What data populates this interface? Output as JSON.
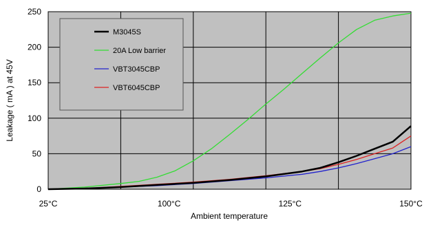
{
  "chart_data": {
    "type": "line",
    "xlabel": "Ambient temperature",
    "ylabel": "Leakage ( mA ) at 45V",
    "x_ticks": [
      "25°C",
      "100°C",
      "125°C",
      "150°C"
    ],
    "y_ticks": [
      "0",
      "50",
      "100",
      "150",
      "200",
      "250"
    ],
    "ylim": [
      0,
      250
    ],
    "grid": true,
    "legend_position": "top-left",
    "x_plot_positions": [
      0,
      0.2,
      0.4,
      0.6,
      0.8,
      1.0
    ],
    "series": [
      {
        "name": "M3045S",
        "color": "#000000",
        "values": [
          [
            0.0,
            0
          ],
          [
            0.1,
            1
          ],
          [
            0.2,
            3
          ],
          [
            0.3,
            6
          ],
          [
            0.4,
            9
          ],
          [
            0.5,
            13
          ],
          [
            0.6,
            18
          ],
          [
            0.7,
            25
          ],
          [
            0.75,
            30
          ],
          [
            0.8,
            38
          ],
          [
            0.85,
            47
          ],
          [
            0.9,
            57
          ],
          [
            0.95,
            67
          ],
          [
            1.0,
            89
          ]
        ]
      },
      {
        "name": "20A Low barrier",
        "color": "#33dd33",
        "values": [
          [
            0.0,
            0
          ],
          [
            0.1,
            3
          ],
          [
            0.2,
            8
          ],
          [
            0.25,
            11
          ],
          [
            0.3,
            17
          ],
          [
            0.35,
            26
          ],
          [
            0.4,
            40
          ],
          [
            0.45,
            57
          ],
          [
            0.5,
            77
          ],
          [
            0.55,
            98
          ],
          [
            0.6,
            120
          ],
          [
            0.65,
            141
          ],
          [
            0.7,
            163
          ],
          [
            0.75,
            185
          ],
          [
            0.8,
            206
          ],
          [
            0.85,
            225
          ],
          [
            0.9,
            238
          ],
          [
            0.95,
            244
          ],
          [
            1.0,
            248
          ]
        ]
      },
      {
        "name": "VBT3045CBP",
        "color": "#2222cc",
        "values": [
          [
            0.0,
            0
          ],
          [
            0.1,
            1
          ],
          [
            0.2,
            3
          ],
          [
            0.3,
            5
          ],
          [
            0.4,
            8
          ],
          [
            0.5,
            12
          ],
          [
            0.6,
            16
          ],
          [
            0.7,
            21
          ],
          [
            0.75,
            25
          ],
          [
            0.8,
            30
          ],
          [
            0.85,
            36
          ],
          [
            0.9,
            43
          ],
          [
            0.95,
            50
          ],
          [
            1.0,
            60
          ]
        ]
      },
      {
        "name": "VBT6045CBP",
        "color": "#dd2222",
        "values": [
          [
            0.0,
            0
          ],
          [
            0.1,
            1
          ],
          [
            0.2,
            4
          ],
          [
            0.3,
            7
          ],
          [
            0.4,
            10
          ],
          [
            0.5,
            14
          ],
          [
            0.6,
            19
          ],
          [
            0.7,
            25
          ],
          [
            0.75,
            29
          ],
          [
            0.8,
            35
          ],
          [
            0.85,
            42
          ],
          [
            0.9,
            50
          ],
          [
            0.95,
            58
          ],
          [
            1.0,
            75
          ]
        ]
      }
    ]
  }
}
